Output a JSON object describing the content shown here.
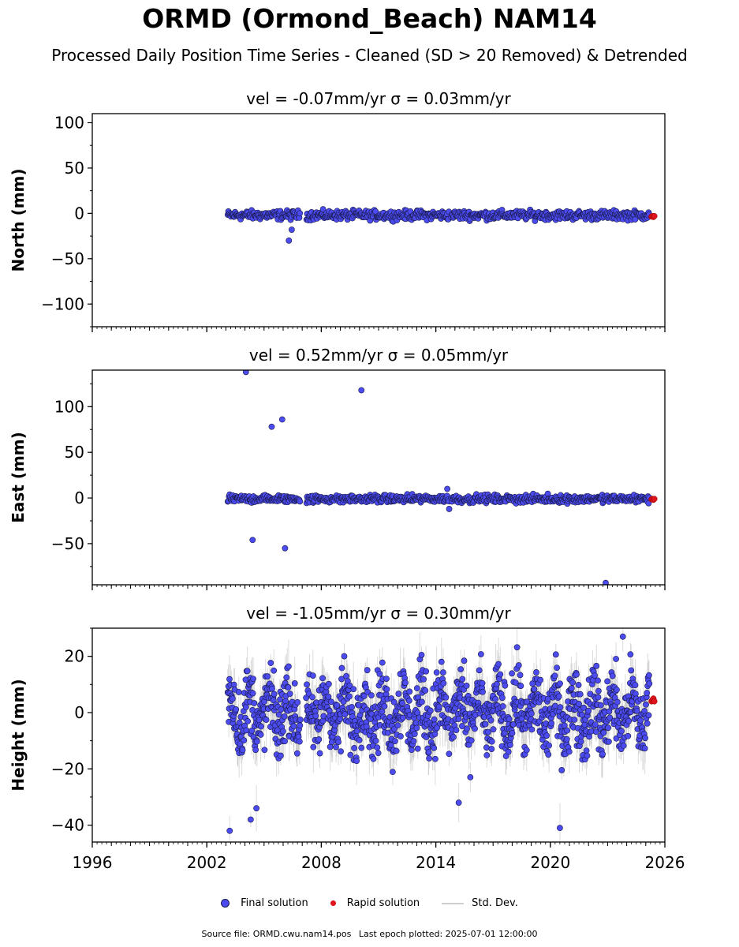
{
  "header": {
    "title": "ORMD (Ormond_Beach) NAM14",
    "subtitle": "Processed Daily Position Time Series - Cleaned (SD > 20 Removed) & Detrended"
  },
  "legend": {
    "final": "Final solution",
    "rapid": "Rapid solution",
    "stddev": "Std. Dev."
  },
  "footer": {
    "source": "Source file: ORMD.cwu.nam14.pos",
    "last_epoch": "Last epoch plotted: 2025-07-01 12:00:00"
  },
  "colors": {
    "final_fill": "#4b4bf0",
    "final_edge": "#1a1a4a",
    "rapid_fill": "#e0141c",
    "error_bar": "#bdbdbd"
  },
  "chart_data": [
    {
      "type": "scatter",
      "title": "vel = -0.07mm/yr   σ = 0.03mm/yr",
      "ylabel": "North (mm)",
      "xlim": [
        1996,
        2026
      ],
      "ylim": [
        -125,
        110
      ],
      "yticks": [
        -100,
        -50,
        0,
        50,
        100
      ],
      "ytick_labels": [
        "−100",
        "−50",
        "0",
        "50",
        "100"
      ],
      "xticks": [
        1996,
        2002,
        2008,
        2014,
        2020,
        2026
      ],
      "xtick_labels": [
        "1996",
        "2002",
        "2008",
        "2014",
        "2020",
        "2026"
      ],
      "series": [
        {
          "type": "final",
          "x_range": [
            2003.1,
            2025.2
          ],
          "gaps": [
            [
              2006.9,
              2007.2
            ],
            [
              2014.7,
              2014.8
            ]
          ],
          "level": -2,
          "spread": 3.5,
          "sd": 3
        },
        {
          "type": "rapid",
          "x": [
            2025.3,
            2025.35,
            2025.4,
            2025.45
          ],
          "y": [
            -3.5,
            -3,
            -4,
            -3
          ]
        }
      ],
      "outliers": [
        {
          "x": 2006.3,
          "y": -30
        },
        {
          "x": 2006.45,
          "y": -18
        }
      ]
    },
    {
      "type": "scatter",
      "title": "vel = 0.52mm/yr   σ = 0.05mm/yr",
      "ylabel": "East (mm)",
      "xlim": [
        1996,
        2026
      ],
      "ylim": [
        -95,
        140
      ],
      "yticks": [
        -50,
        0,
        50,
        100
      ],
      "ytick_labels": [
        "−50",
        "0",
        "50",
        "100"
      ],
      "xticks": [
        1996,
        2002,
        2008,
        2014,
        2020,
        2026
      ],
      "xtick_labels": [
        "1996",
        "2002",
        "2008",
        "2014",
        "2020",
        "2026"
      ],
      "series": [
        {
          "type": "final",
          "x_range": [
            2003.1,
            2025.2
          ],
          "gaps": [
            [
              2006.9,
              2007.2
            ],
            [
              2014.7,
              2014.8
            ]
          ],
          "level": -1,
          "spread": 3,
          "sd": 3
        },
        {
          "type": "rapid",
          "x": [
            2025.3,
            2025.35,
            2025.4,
            2025.45
          ],
          "y": [
            -1.5,
            -1,
            -2,
            -1
          ]
        }
      ],
      "outliers": [
        {
          "x": 2004.05,
          "y": 138
        },
        {
          "x": 2005.4,
          "y": 78
        },
        {
          "x": 2005.95,
          "y": 86
        },
        {
          "x": 2010.1,
          "y": 118
        },
        {
          "x": 2004.4,
          "y": -46
        },
        {
          "x": 2006.1,
          "y": -55
        },
        {
          "x": 2022.9,
          "y": -93
        },
        {
          "x": 2014.6,
          "y": 10
        },
        {
          "x": 2014.7,
          "y": -12
        }
      ]
    },
    {
      "type": "scatter",
      "title": "vel = -1.05mm/yr   σ = 0.30mm/yr",
      "ylabel": "Height (mm)",
      "xlim": [
        1996,
        2026
      ],
      "ylim": [
        -46,
        30
      ],
      "yticks": [
        -40,
        -20,
        0,
        20
      ],
      "ytick_labels": [
        "−40",
        "−20",
        "0",
        "20"
      ],
      "xticks": [
        1996,
        2002,
        2008,
        2014,
        2020,
        2026
      ],
      "xtick_labels": [
        "1996",
        "2002",
        "2008",
        "2014",
        "2020",
        "2026"
      ],
      "series": [
        {
          "type": "final",
          "x_range": [
            2003.1,
            2025.2
          ],
          "gaps": [
            [
              2006.9,
              2007.2
            ],
            [
              2014.7,
              2014.8
            ]
          ],
          "level": 0,
          "spread": 9,
          "sd": 7,
          "seasonal_amp": 6
        },
        {
          "type": "rapid",
          "x": [
            2025.3,
            2025.35,
            2025.4,
            2025.45
          ],
          "y": [
            4,
            4.5,
            5,
            4
          ]
        }
      ],
      "outliers": [
        {
          "x": 2003.2,
          "y": -42
        },
        {
          "x": 2004.3,
          "y": -38
        },
        {
          "x": 2004.6,
          "y": -34
        },
        {
          "x": 2015.2,
          "y": -32
        },
        {
          "x": 2020.5,
          "y": -41
        },
        {
          "x": 2023.8,
          "y": 27
        }
      ]
    }
  ]
}
